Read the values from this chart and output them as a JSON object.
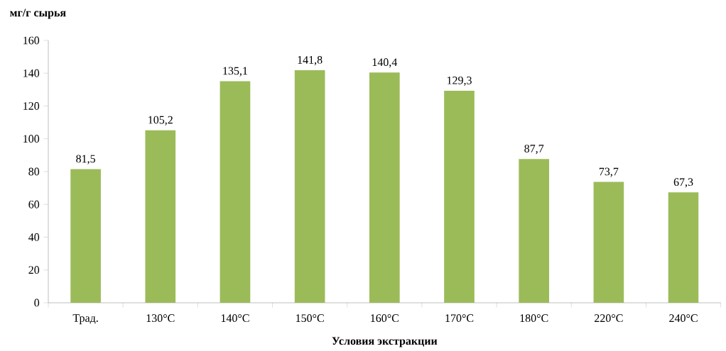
{
  "chart_data": {
    "type": "bar",
    "ylabel": "мг/г сырья",
    "xlabel": "Условия экстракции",
    "categories": [
      "Трад.",
      "130°С",
      "140°С",
      "150°С",
      "160°С",
      "170°С",
      "180°С",
      "220°С",
      "240°С"
    ],
    "values": [
      81.5,
      105.2,
      135.1,
      141.8,
      140.4,
      129.3,
      87.7,
      73.7,
      67.3
    ],
    "value_labels": [
      "81,5",
      "105,2",
      "135,1",
      "141,8",
      "140,4",
      "129,3",
      "87,7",
      "73,7",
      "67,3"
    ],
    "color": "#9bbb59",
    "ylim": [
      0,
      160
    ],
    "yticks": [
      0,
      20,
      40,
      60,
      80,
      100,
      120,
      140,
      160
    ],
    "grid": false
  }
}
